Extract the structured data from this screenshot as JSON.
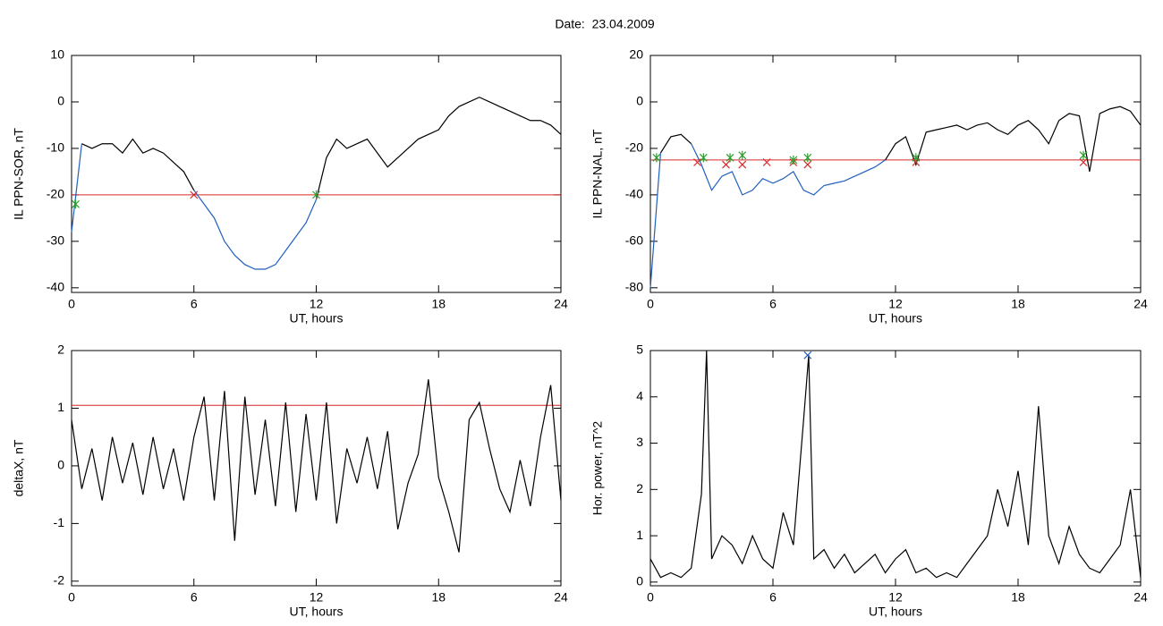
{
  "title": "Date:  23.04.2009",
  "chart_data": [
    {
      "type": "line",
      "ylabel": "IL PPN-SOR, nT",
      "xlabel": "UT, hours",
      "xlim": [
        0,
        24
      ],
      "xticks": [
        0,
        6,
        12,
        18,
        24
      ],
      "ylim": [
        -41,
        10
      ],
      "yticks": [
        -40,
        -30,
        -20,
        -10,
        0,
        10
      ],
      "threshold": -20,
      "threshold_color": "#d62728",
      "x": [
        0,
        0.5,
        1,
        1.5,
        2,
        2.5,
        3,
        3.5,
        4,
        4.5,
        5,
        5.5,
        6,
        6.5,
        7,
        7.5,
        8,
        8.5,
        9,
        9.5,
        10,
        10.5,
        11,
        11.5,
        12,
        12.5,
        13,
        13.5,
        14,
        14.5,
        15,
        15.5,
        16,
        16.5,
        17,
        17.5,
        18,
        18.5,
        19,
        19.5,
        20,
        20.5,
        21,
        21.5,
        22,
        22.5,
        23,
        23.5,
        24
      ],
      "series": [
        {
          "color": "#000000",
          "values": [
            null,
            -9,
            -10,
            -9,
            -9,
            -11,
            -8,
            -11,
            -10,
            -11,
            -13,
            -15,
            -19,
            null,
            null,
            null,
            null,
            null,
            null,
            null,
            null,
            null,
            null,
            null,
            -21,
            -12,
            -8,
            -10,
            -9,
            -8,
            -11,
            -14,
            -12,
            -10,
            -8,
            -7,
            -6,
            -3,
            -1,
            0,
            1,
            0,
            -1,
            -2,
            -3,
            -4,
            -4,
            -5,
            -7
          ]
        },
        {
          "color": "#1f5fbf",
          "values": [
            -28,
            -9,
            null,
            null,
            null,
            null,
            null,
            null,
            null,
            null,
            null,
            null,
            -19,
            -22,
            -25,
            -30,
            -33,
            -35,
            -36,
            -36,
            -35,
            -32,
            -29,
            -26,
            -21,
            null,
            null,
            null,
            null,
            null,
            null,
            null,
            null,
            null,
            null,
            null,
            null,
            null,
            null,
            null,
            null,
            null,
            null,
            null,
            null,
            null,
            null,
            null,
            null
          ]
        }
      ],
      "markers": [
        {
          "color": "#d62728",
          "symbol": "x",
          "x": [
            6
          ],
          "y": [
            -20
          ]
        },
        {
          "color": "#2ca02c",
          "symbol": "star",
          "x": [
            0.2,
            12
          ],
          "y": [
            -22,
            -20
          ]
        }
      ]
    },
    {
      "type": "line",
      "ylabel": "IL PPN-NAL, nT",
      "xlabel": "UT, hours",
      "xlim": [
        0,
        24
      ],
      "xticks": [
        0,
        6,
        12,
        18,
        24
      ],
      "ylim": [
        -82,
        20
      ],
      "yticks": [
        -80,
        -60,
        -40,
        -20,
        0,
        20
      ],
      "threshold": -25,
      "threshold_color": "#d62728",
      "x": [
        0,
        0.5,
        1,
        1.5,
        2,
        2.5,
        3,
        3.5,
        4,
        4.5,
        5,
        5.5,
        6,
        6.5,
        7,
        7.5,
        8,
        8.5,
        9,
        9.5,
        10,
        10.5,
        11,
        11.5,
        12,
        12.5,
        13,
        13.5,
        14,
        14.5,
        15,
        15.5,
        16,
        16.5,
        17,
        17.5,
        18,
        18.5,
        19,
        19.5,
        20,
        20.5,
        21,
        21.5,
        22,
        22.5,
        23,
        23.5,
        24
      ],
      "series": [
        {
          "color": "#000000",
          "values": [
            null,
            -22,
            -15,
            -14,
            -18,
            null,
            null,
            null,
            null,
            null,
            null,
            null,
            null,
            null,
            null,
            null,
            null,
            null,
            null,
            null,
            null,
            null,
            null,
            -25,
            -18,
            -15,
            -27,
            -13,
            -12,
            -11,
            -10,
            -12,
            -10,
            -9,
            -12,
            -14,
            -10,
            -8,
            -12,
            -18,
            -8,
            -5,
            -6,
            -30,
            -5,
            -3,
            -2,
            -4,
            -10
          ]
        },
        {
          "color": "#1f5fbf",
          "values": [
            -80,
            -22,
            null,
            null,
            -18,
            -27,
            -38,
            -32,
            -30,
            -40,
            -38,
            -33,
            -35,
            -33,
            -30,
            -38,
            -40,
            -36,
            -35,
            -34,
            -32,
            -30,
            -28,
            -25,
            null,
            null,
            null,
            null,
            null,
            null,
            null,
            null,
            null,
            null,
            null,
            null,
            null,
            null,
            null,
            null,
            null,
            null,
            null,
            null,
            null,
            null,
            null,
            null,
            null
          ]
        }
      ],
      "markers": [
        {
          "color": "#d62728",
          "symbol": "x",
          "x": [
            2.3,
            3.7,
            4.5,
            5.7,
            7,
            7.7,
            13,
            21.2
          ],
          "y": [
            -26,
            -27,
            -27,
            -26,
            -26,
            -27,
            -26,
            -26
          ]
        },
        {
          "color": "#2ca02c",
          "symbol": "star",
          "x": [
            0.3,
            2.6,
            3.9,
            4.5,
            7,
            7.7,
            13,
            21.2
          ],
          "y": [
            -24,
            -24,
            -24,
            -23,
            -25,
            -24,
            -24,
            -23
          ]
        }
      ]
    },
    {
      "type": "line",
      "ylabel": "deltaX, nT",
      "xlabel": "UT, hours",
      "xlim": [
        0,
        24
      ],
      "xticks": [
        0,
        6,
        12,
        18,
        24
      ],
      "ylim": [
        -2.08,
        2
      ],
      "yticks": [
        -2,
        -1,
        0,
        1,
        2
      ],
      "threshold": 1.05,
      "threshold_color": "#d62728",
      "x": [
        0,
        0.5,
        1,
        1.5,
        2,
        2.5,
        3,
        3.5,
        4,
        4.5,
        5,
        5.5,
        6,
        6.5,
        7,
        7.5,
        8,
        8.5,
        9,
        9.5,
        10,
        10.5,
        11,
        11.5,
        12,
        12.5,
        13,
        13.5,
        14,
        14.5,
        15,
        15.5,
        16,
        16.5,
        17,
        17.5,
        18,
        18.5,
        19,
        19.5,
        20,
        20.5,
        21,
        21.5,
        22,
        22.5,
        23,
        23.5,
        24
      ],
      "series": [
        {
          "color": "#000000",
          "values": [
            0.8,
            -0.4,
            0.3,
            -0.6,
            0.5,
            -0.3,
            0.4,
            -0.5,
            0.5,
            -0.4,
            0.3,
            -0.6,
            0.5,
            1.2,
            -0.6,
            1.3,
            -1.3,
            1.2,
            -0.5,
            0.8,
            -0.7,
            1.1,
            -0.8,
            0.9,
            -0.6,
            1.1,
            -1.0,
            0.3,
            -0.3,
            0.5,
            -0.4,
            0.6,
            -1.1,
            -0.3,
            0.2,
            1.5,
            -0.2,
            -0.8,
            -1.5,
            0.8,
            1.1,
            0.3,
            -0.4,
            -0.8,
            0.1,
            -0.7,
            0.5,
            1.4,
            -0.6
          ]
        }
      ],
      "markers": []
    },
    {
      "type": "line",
      "ylabel": "Hor. power, nT^2",
      "xlabel": "UT, hours",
      "xlim": [
        0,
        24
      ],
      "xticks": [
        0,
        6,
        12,
        18,
        24
      ],
      "ylim": [
        -0.08,
        5
      ],
      "yticks": [
        0,
        1,
        2,
        3,
        4,
        5
      ],
      "x": [
        0,
        0.5,
        1,
        1.5,
        2,
        2.5,
        2.75,
        3,
        3.5,
        4,
        4.5,
        5,
        5.5,
        6,
        6.5,
        7,
        7.5,
        7.75,
        8,
        8.5,
        9,
        9.5,
        10,
        10.5,
        11,
        11.5,
        12,
        12.5,
        13,
        13.5,
        14,
        14.5,
        15,
        15.5,
        16,
        16.5,
        17,
        17.5,
        18,
        18.5,
        19,
        19.5,
        20,
        20.5,
        21,
        21.5,
        22,
        22.5,
        23,
        23.5,
        24
      ],
      "series": [
        {
          "color": "#000000",
          "values": [
            0.5,
            0.1,
            0.2,
            0.1,
            0.3,
            1.9,
            5.0,
            0.5,
            1.0,
            0.8,
            0.4,
            1.0,
            0.5,
            0.3,
            1.5,
            0.8,
            3.5,
            4.9,
            0.5,
            0.7,
            0.3,
            0.6,
            0.2,
            0.4,
            0.6,
            0.2,
            0.5,
            0.7,
            0.2,
            0.3,
            0.1,
            0.2,
            0.1,
            0.4,
            0.7,
            1.0,
            2.0,
            1.2,
            2.4,
            0.8,
            3.8,
            1.0,
            0.4,
            1.2,
            0.6,
            0.3,
            0.2,
            0.5,
            0.8,
            2.0,
            0.1
          ]
        }
      ],
      "markers": [
        {
          "color": "#1f5fbf",
          "symbol": "x",
          "x": [
            7.7
          ],
          "y": [
            4.9
          ]
        }
      ]
    }
  ]
}
